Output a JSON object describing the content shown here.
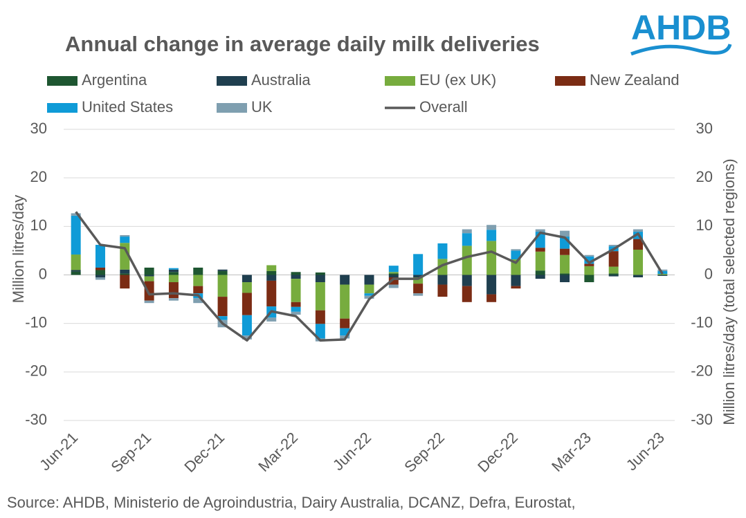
{
  "logo": "AHDB",
  "chart_data": {
    "type": "bar",
    "title": "Annual change in average daily milk deliveries",
    "y_label": "Million litres/day",
    "y2_label": "Million litres/day (total selected regions)",
    "source": "Source: AHDB, Ministerio de Agroindustria, Dairy Australia, DCANZ, Defra, Eurostat,",
    "categories": [
      "Jun-21",
      null,
      null,
      "Sep-21",
      null,
      null,
      "Dec-21",
      null,
      null,
      "Mar-22",
      null,
      null,
      "Jun-22",
      null,
      null,
      "Sep-22",
      null,
      null,
      "Dec-22",
      null,
      null,
      "Mar-23",
      null,
      null,
      "Jun-23"
    ],
    "ylim": [
      -30,
      30
    ],
    "yticks": [
      -30,
      -20,
      -10,
      0,
      10,
      20,
      30
    ],
    "y2lim": [
      -30,
      30
    ],
    "y2ticks": [
      -30,
      -20,
      -10,
      0,
      10,
      20,
      30
    ],
    "grid": true,
    "series": [
      {
        "name": "Argentina",
        "color": "#1e5631",
        "values": [
          0.7,
          1,
          0.3,
          1.5,
          0.6,
          1.5,
          0.8,
          0,
          0.8,
          0.6,
          0.5,
          0,
          0,
          0.3,
          0,
          0,
          0,
          0,
          0,
          0.9,
          0.3,
          -1.5,
          0.3,
          0,
          0
        ]
      },
      {
        "name": "Australia",
        "color": "#1f3f4f",
        "values": [
          0.3,
          -0.5,
          0.8,
          -0.3,
          0.5,
          0,
          0.3,
          -1.5,
          -1.2,
          -0.8,
          -1.5,
          -2,
          -2,
          -0.5,
          -0.5,
          -2,
          -2.3,
          -4,
          -2.3,
          -0.8,
          -1.5,
          0,
          -0.3,
          -0.5,
          -0.2
        ]
      },
      {
        "name": "EU (ex UK)",
        "color": "#77ac3e",
        "values": [
          3.2,
          0,
          5.5,
          -1,
          -1.5,
          -2.3,
          -4.5,
          -2.2,
          1.2,
          -4.8,
          -5.8,
          -7,
          -1.8,
          0.3,
          -1.3,
          3.3,
          6,
          7,
          3.2,
          3.9,
          3.8,
          1.8,
          1.4,
          5.2,
          0.2
        ]
      },
      {
        "name": "New Zealand",
        "color": "#7b2c14",
        "values": [
          0,
          0.5,
          -2.8,
          -4,
          -3.3,
          -1.5,
          -4,
          -4.6,
          -5.3,
          -1,
          -2.8,
          -2,
          0,
          -1.5,
          -2,
          -2.5,
          -3.3,
          -1.6,
          -0.5,
          0.8,
          1.3,
          0.5,
          3.2,
          2.2,
          0
        ]
      },
      {
        "name": "United States",
        "color": "#0f9bd7",
        "values": [
          8,
          4.7,
          1.3,
          0,
          0.3,
          -1,
          -0.8,
          -4.2,
          -2.3,
          -1,
          -3,
          -1.5,
          -0.5,
          1.3,
          4.3,
          3.2,
          2.6,
          2.3,
          1.8,
          3.3,
          2.5,
          1.5,
          1,
          1.5,
          0.6
        ]
      },
      {
        "name": "UK",
        "color": "#7f9fb0",
        "values": [
          0.5,
          -0.5,
          0.3,
          -0.5,
          -0.5,
          -1,
          -1.5,
          -0.8,
          -0.8,
          -0.6,
          -0.6,
          -0.6,
          -0.6,
          -0.7,
          -0.5,
          0,
          0.8,
          1,
          0.3,
          0.5,
          1.2,
          0.3,
          0.3,
          0.5,
          0.3
        ]
      },
      {
        "name": "Overall",
        "type": "line",
        "axis": "y2",
        "color": "#595959",
        "values": [
          13,
          6.2,
          5.5,
          -4,
          -3.8,
          -4.2,
          -10,
          -13.5,
          -7.5,
          -8.5,
          -13.5,
          -13.3,
          -5,
          -0.8,
          -0.8,
          2,
          3.7,
          4.8,
          2.5,
          8.7,
          7.7,
          2.5,
          5.3,
          8.5,
          0.2
        ]
      }
    ]
  }
}
